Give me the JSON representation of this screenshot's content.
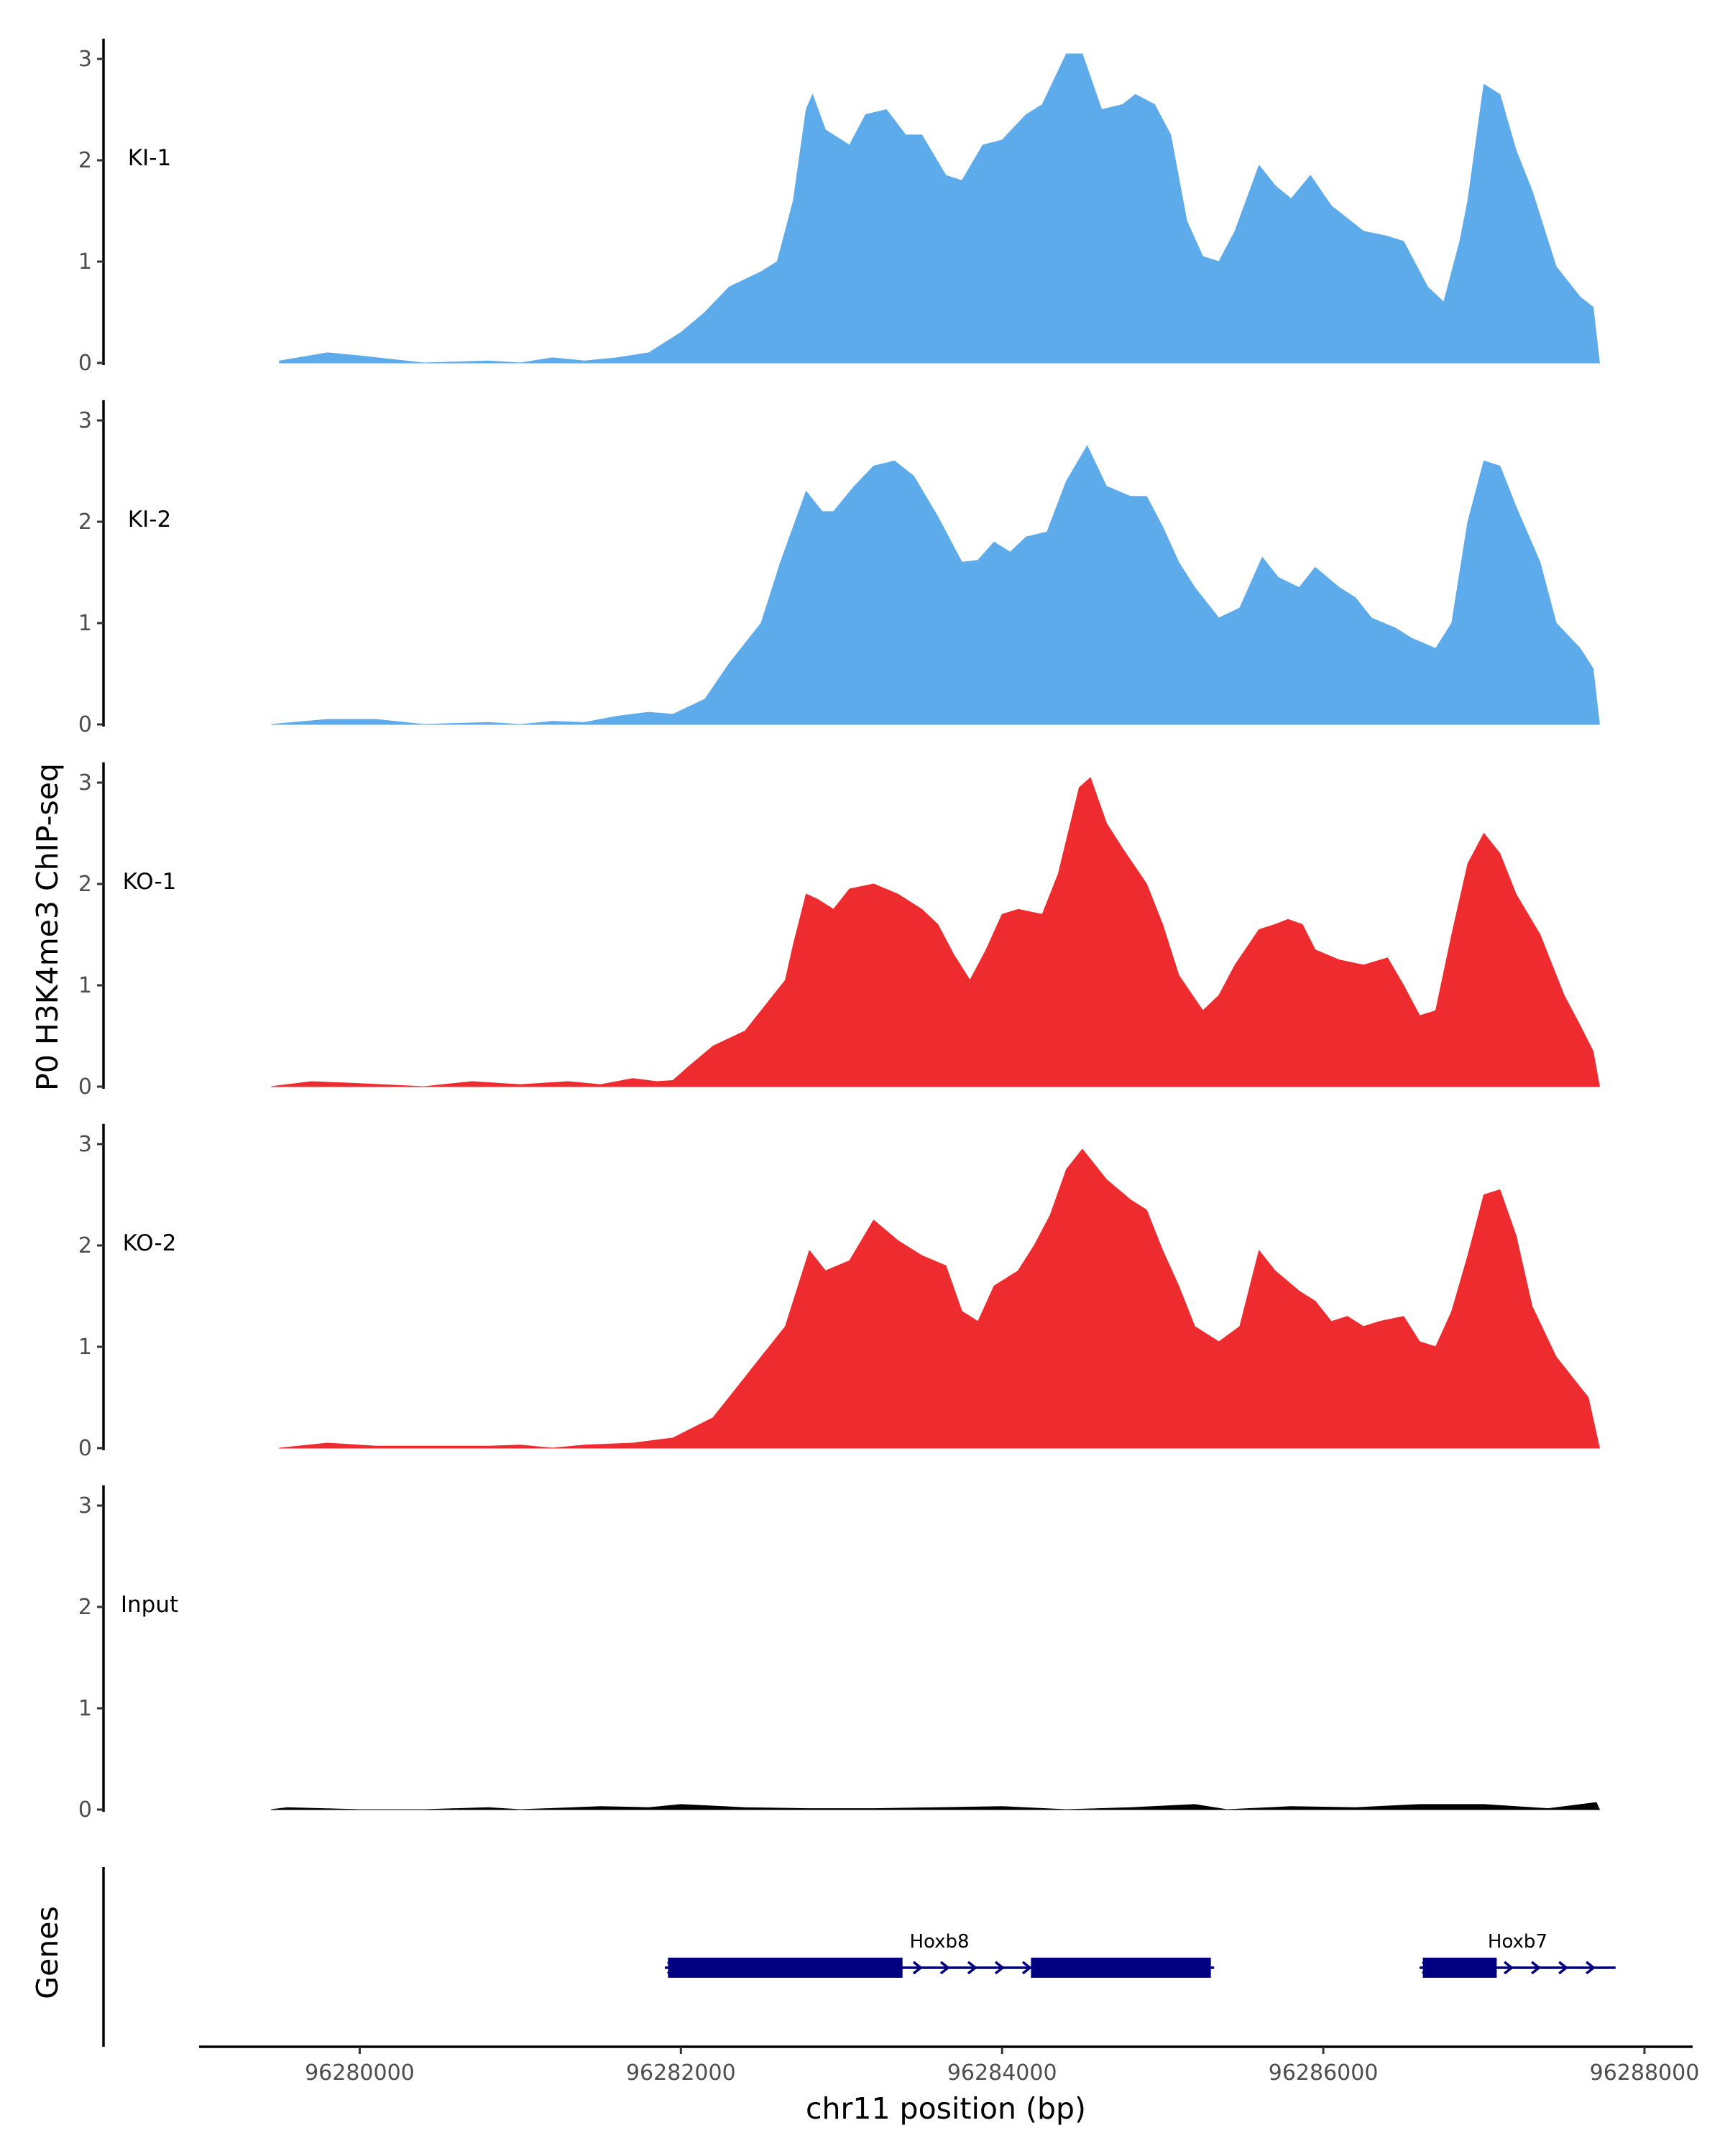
{
  "chart_data": {
    "type": "area",
    "ylabel": "P0 H3K4me3 ChIP-seq",
    "xlabel": "chr11 position (bp)",
    "genes_label": "Genes",
    "x_range": [
      96279000,
      96288300
    ],
    "y_range": [
      0,
      3.2
    ],
    "y_ticks": [
      0,
      1,
      2,
      3
    ],
    "x_ticks": [
      96280000,
      96282000,
      96284000,
      96286000,
      96288000
    ],
    "tracks": [
      {
        "name": "KI-1",
        "color": "#5dabeb",
        "points": [
          [
            96279500,
            0.02
          ],
          [
            96279800,
            0.1
          ],
          [
            96280000,
            0.07
          ],
          [
            96280400,
            0.0
          ],
          [
            96280800,
            0.02
          ],
          [
            96281000,
            0.0
          ],
          [
            96281200,
            0.05
          ],
          [
            96281400,
            0.02
          ],
          [
            96281600,
            0.05
          ],
          [
            96281800,
            0.1
          ],
          [
            96282000,
            0.3
          ],
          [
            96282150,
            0.5
          ],
          [
            96282300,
            0.75
          ],
          [
            96282500,
            0.9
          ],
          [
            96282600,
            1.0
          ],
          [
            96282700,
            1.6
          ],
          [
            96282780,
            2.5
          ],
          [
            96282820,
            2.65
          ],
          [
            96282900,
            2.3
          ],
          [
            96283050,
            2.15
          ],
          [
            96283150,
            2.45
          ],
          [
            96283280,
            2.5
          ],
          [
            96283400,
            2.25
          ],
          [
            96283500,
            2.25
          ],
          [
            96283650,
            1.85
          ],
          [
            96283750,
            1.8
          ],
          [
            96283880,
            2.15
          ],
          [
            96284000,
            2.2
          ],
          [
            96284150,
            2.45
          ],
          [
            96284250,
            2.55
          ],
          [
            96284400,
            3.05
          ],
          [
            96284500,
            3.05
          ],
          [
            96284620,
            2.5
          ],
          [
            96284750,
            2.55
          ],
          [
            96284830,
            2.65
          ],
          [
            96284950,
            2.55
          ],
          [
            96285050,
            2.25
          ],
          [
            96285150,
            1.4
          ],
          [
            96285250,
            1.05
          ],
          [
            96285350,
            1.0
          ],
          [
            96285450,
            1.3
          ],
          [
            96285600,
            1.95
          ],
          [
            96285700,
            1.75
          ],
          [
            96285800,
            1.62
          ],
          [
            96285920,
            1.85
          ],
          [
            96286050,
            1.55
          ],
          [
            96286250,
            1.3
          ],
          [
            96286400,
            1.25
          ],
          [
            96286500,
            1.2
          ],
          [
            96286650,
            0.75
          ],
          [
            96286750,
            0.6
          ],
          [
            96286850,
            1.2
          ],
          [
            96286900,
            1.6
          ],
          [
            96287000,
            2.75
          ],
          [
            96287100,
            2.65
          ],
          [
            96287200,
            2.1
          ],
          [
            96287300,
            1.7
          ],
          [
            96287450,
            0.95
          ],
          [
            96287600,
            0.65
          ],
          [
            96287680,
            0.55
          ],
          [
            96287720,
            0.0
          ]
        ]
      },
      {
        "name": "KI-2",
        "color": "#5dabeb",
        "points": [
          [
            96279450,
            0.0
          ],
          [
            96279800,
            0.05
          ],
          [
            96280100,
            0.05
          ],
          [
            96280400,
            0.0
          ],
          [
            96280800,
            0.02
          ],
          [
            96281000,
            0.0
          ],
          [
            96281200,
            0.03
          ],
          [
            96281400,
            0.02
          ],
          [
            96281600,
            0.08
          ],
          [
            96281800,
            0.12
          ],
          [
            96281950,
            0.1
          ],
          [
            96282150,
            0.25
          ],
          [
            96282300,
            0.6
          ],
          [
            96282500,
            1.0
          ],
          [
            96282620,
            1.6
          ],
          [
            96282780,
            2.3
          ],
          [
            96282880,
            2.1
          ],
          [
            96282950,
            2.1
          ],
          [
            96283080,
            2.35
          ],
          [
            96283200,
            2.55
          ],
          [
            96283330,
            2.6
          ],
          [
            96283450,
            2.45
          ],
          [
            96283600,
            2.05
          ],
          [
            96283750,
            1.6
          ],
          [
            96283850,
            1.62
          ],
          [
            96283950,
            1.8
          ],
          [
            96284050,
            1.7
          ],
          [
            96284150,
            1.85
          ],
          [
            96284280,
            1.9
          ],
          [
            96284400,
            2.4
          ],
          [
            96284530,
            2.75
          ],
          [
            96284650,
            2.35
          ],
          [
            96284800,
            2.25
          ],
          [
            96284900,
            2.25
          ],
          [
            96285000,
            1.95
          ],
          [
            96285100,
            1.6
          ],
          [
            96285200,
            1.35
          ],
          [
            96285350,
            1.05
          ],
          [
            96285480,
            1.15
          ],
          [
            96285620,
            1.65
          ],
          [
            96285720,
            1.45
          ],
          [
            96285850,
            1.35
          ],
          [
            96285950,
            1.55
          ],
          [
            96286100,
            1.35
          ],
          [
            96286200,
            1.25
          ],
          [
            96286300,
            1.05
          ],
          [
            96286450,
            0.95
          ],
          [
            96286550,
            0.85
          ],
          [
            96286700,
            0.75
          ],
          [
            96286800,
            1.0
          ],
          [
            96286900,
            2.0
          ],
          [
            96287000,
            2.6
          ],
          [
            96287100,
            2.55
          ],
          [
            96287200,
            2.15
          ],
          [
            96287350,
            1.6
          ],
          [
            96287450,
            1.0
          ],
          [
            96287600,
            0.75
          ],
          [
            96287680,
            0.55
          ],
          [
            96287720,
            0.0
          ]
        ]
      },
      {
        "name": "KO-1",
        "color": "#ee2b2e",
        "points": [
          [
            96279450,
            0.0
          ],
          [
            96279700,
            0.05
          ],
          [
            96280000,
            0.03
          ],
          [
            96280400,
            0.0
          ],
          [
            96280700,
            0.05
          ],
          [
            96281000,
            0.02
          ],
          [
            96281300,
            0.05
          ],
          [
            96281500,
            0.02
          ],
          [
            96281700,
            0.08
          ],
          [
            96281850,
            0.05
          ],
          [
            96281950,
            0.06
          ],
          [
            96282050,
            0.2
          ],
          [
            96282200,
            0.4
          ],
          [
            96282400,
            0.55
          ],
          [
            96282550,
            0.85
          ],
          [
            96282650,
            1.05
          ],
          [
            96282700,
            1.4
          ],
          [
            96282780,
            1.9
          ],
          [
            96282850,
            1.85
          ],
          [
            96282950,
            1.75
          ],
          [
            96283050,
            1.95
          ],
          [
            96283200,
            2.0
          ],
          [
            96283350,
            1.9
          ],
          [
            96283500,
            1.75
          ],
          [
            96283600,
            1.6
          ],
          [
            96283700,
            1.3
          ],
          [
            96283800,
            1.05
          ],
          [
            96283900,
            1.35
          ],
          [
            96284000,
            1.7
          ],
          [
            96284100,
            1.75
          ],
          [
            96284250,
            1.7
          ],
          [
            96284350,
            2.1
          ],
          [
            96284480,
            2.95
          ],
          [
            96284550,
            3.05
          ],
          [
            96284650,
            2.6
          ],
          [
            96284750,
            2.35
          ],
          [
            96284900,
            2.0
          ],
          [
            96285000,
            1.6
          ],
          [
            96285100,
            1.1
          ],
          [
            96285250,
            0.75
          ],
          [
            96285350,
            0.9
          ],
          [
            96285450,
            1.2
          ],
          [
            96285600,
            1.55
          ],
          [
            96285700,
            1.6
          ],
          [
            96285780,
            1.65
          ],
          [
            96285870,
            1.6
          ],
          [
            96285950,
            1.35
          ],
          [
            96286100,
            1.25
          ],
          [
            96286250,
            1.2
          ],
          [
            96286400,
            1.27
          ],
          [
            96286500,
            1.0
          ],
          [
            96286600,
            0.7
          ],
          [
            96286700,
            0.75
          ],
          [
            96286800,
            1.5
          ],
          [
            96286900,
            2.2
          ],
          [
            96287000,
            2.5
          ],
          [
            96287100,
            2.3
          ],
          [
            96287200,
            1.9
          ],
          [
            96287350,
            1.5
          ],
          [
            96287500,
            0.9
          ],
          [
            96287600,
            0.6
          ],
          [
            96287680,
            0.35
          ],
          [
            96287720,
            0.0
          ]
        ]
      },
      {
        "name": "KO-2",
        "color": "#ee2b2e",
        "points": [
          [
            96279500,
            0.0
          ],
          [
            96279800,
            0.05
          ],
          [
            96280100,
            0.02
          ],
          [
            96280400,
            0.02
          ],
          [
            96280800,
            0.02
          ],
          [
            96281000,
            0.03
          ],
          [
            96281200,
            0.0
          ],
          [
            96281400,
            0.03
          ],
          [
            96281700,
            0.05
          ],
          [
            96281950,
            0.1
          ],
          [
            96282200,
            0.3
          ],
          [
            96282350,
            0.6
          ],
          [
            96282500,
            0.9
          ],
          [
            96282650,
            1.2
          ],
          [
            96282800,
            1.95
          ],
          [
            96282900,
            1.75
          ],
          [
            96283050,
            1.85
          ],
          [
            96283200,
            2.25
          ],
          [
            96283350,
            2.05
          ],
          [
            96283500,
            1.9
          ],
          [
            96283650,
            1.8
          ],
          [
            96283750,
            1.35
          ],
          [
            96283850,
            1.25
          ],
          [
            96283950,
            1.6
          ],
          [
            96284100,
            1.75
          ],
          [
            96284200,
            2.0
          ],
          [
            96284300,
            2.3
          ],
          [
            96284400,
            2.75
          ],
          [
            96284500,
            2.95
          ],
          [
            96284650,
            2.65
          ],
          [
            96284800,
            2.45
          ],
          [
            96284900,
            2.35
          ],
          [
            96285000,
            1.95
          ],
          [
            96285100,
            1.6
          ],
          [
            96285200,
            1.2
          ],
          [
            96285350,
            1.05
          ],
          [
            96285480,
            1.2
          ],
          [
            96285600,
            1.95
          ],
          [
            96285700,
            1.75
          ],
          [
            96285850,
            1.55
          ],
          [
            96285950,
            1.45
          ],
          [
            96286050,
            1.25
          ],
          [
            96286150,
            1.3
          ],
          [
            96286250,
            1.2
          ],
          [
            96286350,
            1.25
          ],
          [
            96286500,
            1.3
          ],
          [
            96286600,
            1.05
          ],
          [
            96286700,
            1.0
          ],
          [
            96286800,
            1.35
          ],
          [
            96286900,
            1.9
          ],
          [
            96287000,
            2.5
          ],
          [
            96287100,
            2.55
          ],
          [
            96287200,
            2.1
          ],
          [
            96287300,
            1.4
          ],
          [
            96287450,
            0.9
          ],
          [
            96287550,
            0.7
          ],
          [
            96287650,
            0.5
          ],
          [
            96287720,
            0.0
          ]
        ]
      },
      {
        "name": "Input",
        "color": "#000000",
        "points": [
          [
            96279450,
            0.0
          ],
          [
            96279550,
            0.02
          ],
          [
            96280000,
            0.0
          ],
          [
            96280400,
            0.0
          ],
          [
            96280800,
            0.02
          ],
          [
            96281000,
            0.0
          ],
          [
            96281500,
            0.03
          ],
          [
            96281800,
            0.02
          ],
          [
            96282000,
            0.05
          ],
          [
            96282400,
            0.02
          ],
          [
            96282800,
            0.01
          ],
          [
            96283200,
            0.01
          ],
          [
            96283600,
            0.02
          ],
          [
            96284000,
            0.03
          ],
          [
            96284400,
            0.0
          ],
          [
            96284800,
            0.02
          ],
          [
            96285200,
            0.05
          ],
          [
            96285400,
            0.0
          ],
          [
            96285800,
            0.03
          ],
          [
            96286200,
            0.02
          ],
          [
            96286600,
            0.05
          ],
          [
            96287000,
            0.05
          ],
          [
            96287400,
            0.01
          ],
          [
            96287700,
            0.07
          ],
          [
            96287720,
            0.0
          ]
        ]
      }
    ],
    "genes": [
      {
        "name": "Hoxb8",
        "start": 96281900,
        "end": 96285320,
        "strand": "+",
        "exons": [
          [
            96281920,
            96283380
          ],
          [
            96284180,
            96285300
          ]
        ]
      },
      {
        "name": "Hoxb7",
        "start": 96286600,
        "end": 96287820,
        "strand": "+",
        "exons": [
          [
            96286620,
            96287080
          ]
        ]
      }
    ]
  }
}
